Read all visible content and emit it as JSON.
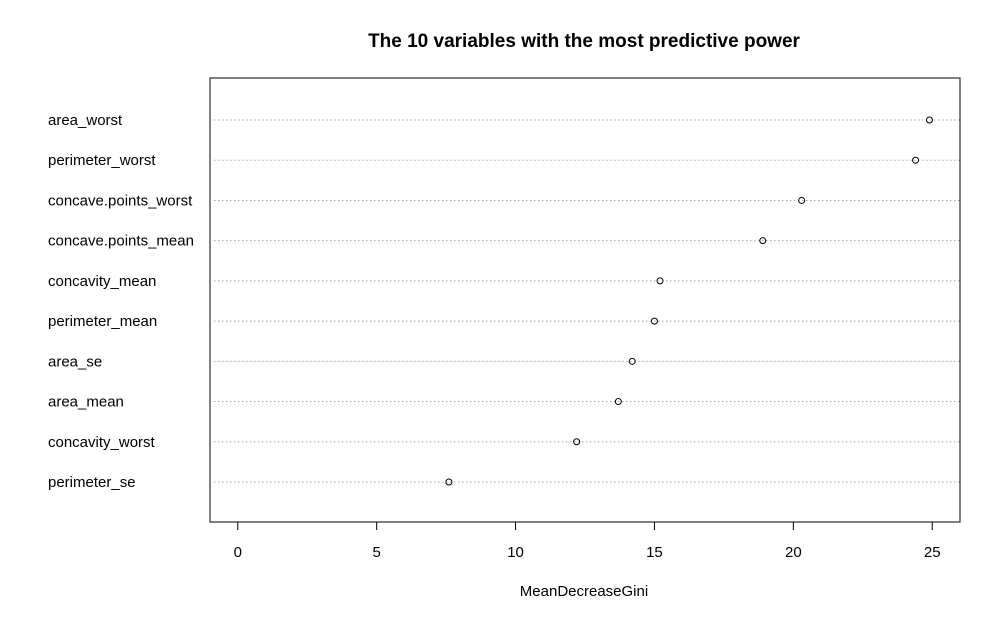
{
  "chart_data": {
    "type": "scatter",
    "title": "The 10 variables with the most predictive power",
    "xlabel": "MeanDecreaseGini",
    "ylabel": "",
    "xlim": [
      -1,
      26
    ],
    "x_ticks": [
      0,
      5,
      10,
      15,
      20,
      25
    ],
    "x_tick_labels": [
      "0",
      "5",
      "10",
      "15",
      "20",
      "25"
    ],
    "grid": "dotted horizontal guide lines",
    "categories": [
      "area_worst",
      "perimeter_worst",
      "concave.points_worst",
      "concave.points_mean",
      "concavity_mean",
      "perimeter_mean",
      "area_se",
      "area_mean",
      "concavity_worst",
      "perimeter_se"
    ],
    "values": [
      24.9,
      24.4,
      20.3,
      18.9,
      15.2,
      15.0,
      14.2,
      13.7,
      12.2,
      7.6
    ]
  }
}
